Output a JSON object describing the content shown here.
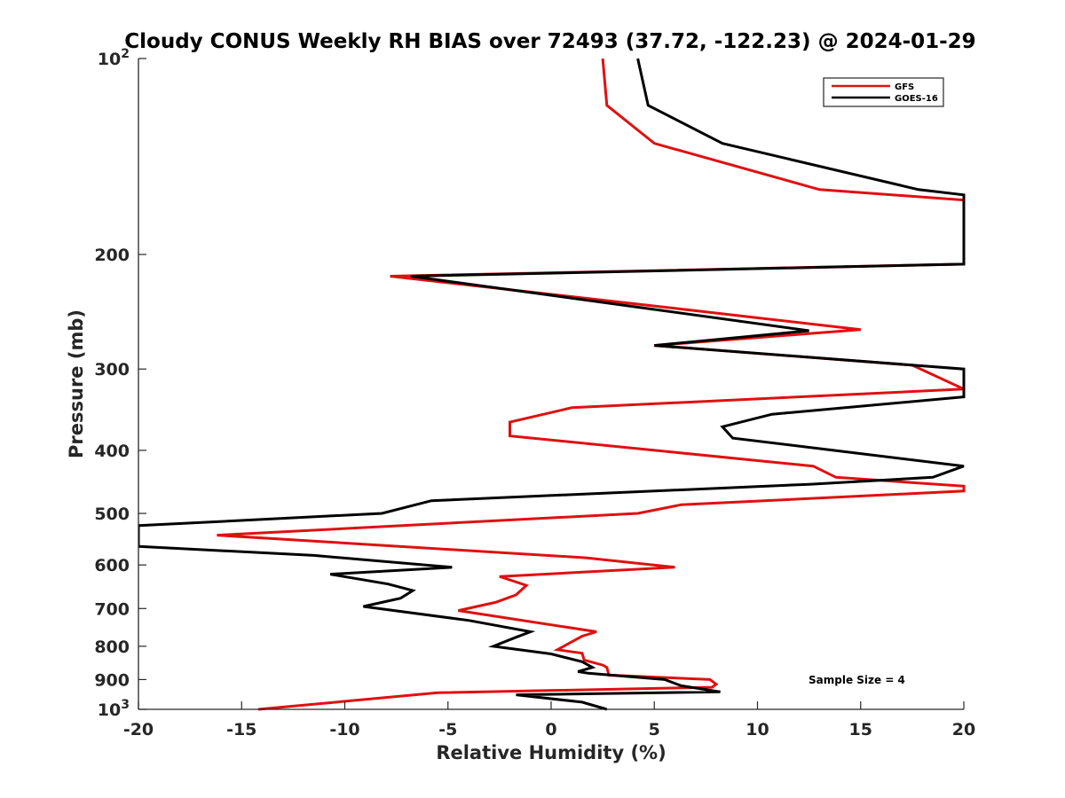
{
  "chart_data": {
    "type": "line",
    "title": "Cloudy CONUS Weekly RH BIAS over 72493 (37.72, -122.23) @ 2024-01-29",
    "xlabel": "Relative Humidity (%)",
    "ylabel": "Pressure (mb)",
    "xlim": [
      -20,
      20
    ],
    "ylim": [
      100,
      1000
    ],
    "y_scale": "log",
    "y_reversed": true,
    "x_ticks": [
      "-20",
      "-15",
      "-10",
      "-5",
      "0",
      "5",
      "10",
      "15",
      "20"
    ],
    "x_tick_values": [
      -20,
      -15,
      -10,
      -5,
      0,
      5,
      10,
      15,
      20
    ],
    "y_ticks": [
      {
        "value": 100,
        "base": "10",
        "exp": "2"
      },
      {
        "value": 200,
        "base": "200",
        "exp": ""
      },
      {
        "value": 300,
        "base": "300",
        "exp": ""
      },
      {
        "value": 400,
        "base": "400",
        "exp": ""
      },
      {
        "value": 500,
        "base": "500",
        "exp": ""
      },
      {
        "value": 600,
        "base": "600",
        "exp": ""
      },
      {
        "value": 700,
        "base": "700",
        "exp": ""
      },
      {
        "value": 800,
        "base": "800",
        "exp": ""
      },
      {
        "value": 900,
        "base": "900",
        "exp": ""
      },
      {
        "value": 1000,
        "base": "10",
        "exp": "3"
      }
    ],
    "grid": false,
    "legend_position": "top-right",
    "annotation": "Sample Size = 4",
    "series": [
      {
        "name": "GFS",
        "color": "#e01010",
        "points": [
          [
            2.5,
            100
          ],
          [
            2.7,
            118
          ],
          [
            5.0,
            135
          ],
          [
            13.0,
            159
          ],
          [
            20.0,
            165
          ],
          [
            20.0,
            207
          ],
          [
            -7.8,
            216
          ],
          [
            5.0,
            240
          ],
          [
            15.0,
            261
          ],
          [
            5.0,
            276
          ],
          [
            17.5,
            296
          ],
          [
            20.0,
            322
          ],
          [
            1.0,
            344
          ],
          [
            -2.0,
            362
          ],
          [
            -2.0,
            380
          ],
          [
            12.7,
            423
          ],
          [
            13.8,
            440
          ],
          [
            20.0,
            454
          ],
          [
            20.0,
            462
          ],
          [
            6.3,
            485
          ],
          [
            4.2,
            500
          ],
          [
            -16.2,
            540
          ],
          [
            1.7,
            585
          ],
          [
            6.0,
            605
          ],
          [
            -2.5,
            625
          ],
          [
            -1.2,
            645
          ],
          [
            -1.7,
            667
          ],
          [
            -2.7,
            685
          ],
          [
            -4.5,
            705
          ],
          [
            2.2,
            760
          ],
          [
            1.5,
            772
          ],
          [
            0.3,
            810
          ],
          [
            1.5,
            820
          ],
          [
            1.6,
            840
          ],
          [
            2.5,
            855
          ],
          [
            2.7,
            862
          ],
          [
            2.8,
            886
          ],
          [
            7.7,
            900
          ],
          [
            8.0,
            915
          ],
          [
            7.8,
            925
          ],
          [
            -5.5,
            943
          ],
          [
            -14.2,
            1000
          ]
        ]
      },
      {
        "name": "GOES-16",
        "color": "#000000",
        "points": [
          [
            4.2,
            100
          ],
          [
            4.7,
            118
          ],
          [
            8.3,
            135
          ],
          [
            17.8,
            159
          ],
          [
            20.0,
            162
          ],
          [
            20.0,
            207
          ],
          [
            -6.8,
            216
          ],
          [
            5.0,
            243
          ],
          [
            12.5,
            262
          ],
          [
            5.0,
            276
          ],
          [
            20.0,
            300
          ],
          [
            20.0,
            331
          ],
          [
            10.7,
            352
          ],
          [
            8.3,
            368
          ],
          [
            8.8,
            383
          ],
          [
            20.0,
            423
          ],
          [
            18.5,
            440
          ],
          [
            12.5,
            451
          ],
          [
            -5.8,
            478
          ],
          [
            -8.2,
            500
          ],
          [
            -20.0,
            522
          ],
          [
            -20.0,
            562
          ],
          [
            -11.5,
            580
          ],
          [
            -4.8,
            605
          ],
          [
            -10.7,
            620
          ],
          [
            -7.9,
            642
          ],
          [
            -6.7,
            657
          ],
          [
            -7.3,
            675
          ],
          [
            -9.1,
            695
          ],
          [
            -4.0,
            730
          ],
          [
            -1.0,
            760
          ],
          [
            -1.7,
            775
          ],
          [
            -2.8,
            800
          ],
          [
            0.0,
            822
          ],
          [
            1.5,
            845
          ],
          [
            2.0,
            862
          ],
          [
            1.3,
            875
          ],
          [
            1.8,
            880
          ],
          [
            5.5,
            900
          ],
          [
            6.3,
            920
          ],
          [
            8.2,
            940
          ],
          [
            -1.7,
            950
          ],
          [
            1.5,
            975
          ],
          [
            2.7,
            1000
          ]
        ]
      }
    ]
  }
}
